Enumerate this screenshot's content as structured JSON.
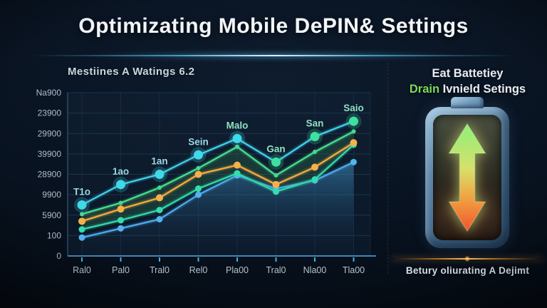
{
  "page": {
    "title": "Optimizating Mobile DePIN& Settings"
  },
  "chart_data": {
    "type": "line",
    "title": "Mestiines A Watings 6.2",
    "categories": [
      "Ral0",
      "Pal0",
      "Tral0",
      "Rel0",
      "Pla00",
      "Tral0",
      "Nla00",
      "Tla00"
    ],
    "y_tick_labels_bottom_to_top": [
      "0",
      "100",
      "5900",
      "9900",
      "28900",
      "39900",
      "29900",
      "23900",
      "Na900"
    ],
    "ylim": [
      0,
      800
    ],
    "grid": true,
    "legend": "none",
    "series": [
      {
        "name": "main-cyan",
        "color": "#3ecbe8",
        "point_color": "#3fd9e8",
        "point_color_alt": "#3fe0a0",
        "alt_from_index": 5,
        "dot_radius": 6.5,
        "values": [
          250,
          350,
          400,
          495,
          575,
          460,
          585,
          660
        ],
        "point_labels": [
          "T1o",
          "1ao",
          "1an",
          "Sein",
          "Malo",
          "Gan",
          "San",
          "Saio"
        ]
      },
      {
        "name": "green-upper",
        "color": "#46d98c",
        "point_color": "#46d98c",
        "dot_radius": 3,
        "values": [
          205,
          260,
          335,
          430,
          535,
          395,
          510,
          610
        ],
        "band_fill_to": "teal-lower",
        "band_fill_color": "rgba(45,105,75,0.38)"
      },
      {
        "name": "orange",
        "color": "#f0a83c",
        "point_color": "#f5b04a",
        "dot_radius": 5,
        "values": [
          170,
          230,
          285,
          400,
          445,
          350,
          435,
          555
        ]
      },
      {
        "name": "teal-lower",
        "color": "#2fd6a8",
        "point_color": "#35dcae",
        "dot_radius": 4.5,
        "values": [
          130,
          175,
          225,
          330,
          405,
          315,
          375,
          545
        ]
      },
      {
        "name": "blue-area",
        "color": "#4aa8e8",
        "point_color": "#54b2ee",
        "dot_radius": 4.5,
        "values": [
          90,
          135,
          180,
          300,
          395,
          330,
          370,
          460
        ],
        "area": true
      }
    ]
  },
  "right_panel": {
    "headline_line1": "Eat Battetiey",
    "headline_accent": "Drain",
    "headline_rest": " Ivnield Setings",
    "caption": "Betury oliurating A Dejimt",
    "icon": "battery-up-down-arrow-icon"
  },
  "colors": {
    "accent_green": "#7ed957",
    "streak_cyan": "#54c8f0",
    "divider_orange": "#ffc86a",
    "axis_label": "#b0bcc8",
    "gridline": "#1e3a54"
  }
}
